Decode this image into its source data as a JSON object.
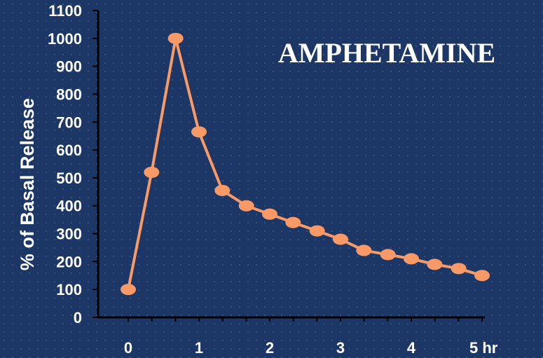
{
  "chart_data": {
    "type": "line",
    "title": "AMPHETAMINE",
    "xlabel": "",
    "ylabel": "% of Basal Release",
    "x_ticks": [
      "0",
      "1",
      "2",
      "3",
      "4",
      "5 hr"
    ],
    "x_tick_values": [
      0,
      1,
      2,
      3,
      4,
      5
    ],
    "y_ticks": [
      "0",
      "100",
      "200",
      "300",
      "400",
      "500",
      "600",
      "700",
      "800",
      "900",
      "1000",
      "1100"
    ],
    "xlim": [
      0,
      5
    ],
    "ylim": [
      0,
      1100
    ],
    "series": [
      {
        "x": [
          0,
          0.33,
          0.67,
          1.0,
          1.33,
          1.67,
          2.0,
          2.33,
          2.67,
          3.0,
          3.33,
          3.67,
          4.0,
          4.33,
          4.67,
          5.0
        ],
        "y": [
          100,
          520,
          1000,
          665,
          455,
          400,
          370,
          340,
          310,
          280,
          240,
          225,
          210,
          190,
          175,
          150
        ],
        "color": "#f79a68"
      }
    ],
    "axis_color": "#000000",
    "grid": false
  }
}
